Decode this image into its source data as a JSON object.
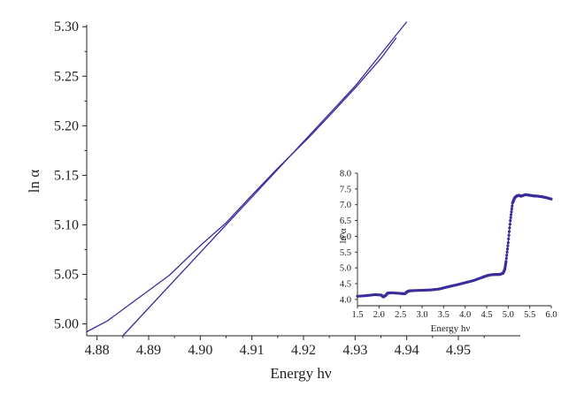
{
  "colors": {
    "series": "#3a2d9c",
    "axis": "#222222"
  },
  "chart_data": [
    {
      "type": "line",
      "title": "",
      "xlabel": "Energy hν",
      "ylabel": "ln α",
      "xlim": [
        4.878,
        4.962
      ],
      "ylim": [
        4.988,
        5.302
      ],
      "xticks": [
        "4.88",
        "4.89",
        "4.90",
        "4.91",
        "4.92",
        "4.93",
        "4.94",
        "4.95"
      ],
      "yticks": [
        "5.00",
        "5.05",
        "5.10",
        "5.15",
        "5.20",
        "5.25",
        "5.30"
      ],
      "grid": false,
      "series": [
        {
          "x": [
            4.878,
            4.882,
            4.888,
            4.894,
            4.9,
            4.905,
            4.91,
            4.915,
            4.921,
            4.925,
            4.93,
            4.935,
            4.938
          ],
          "y": [
            4.992,
            5.003,
            5.026,
            5.049,
            5.079,
            5.102,
            5.13,
            5.157,
            5.188,
            5.21,
            5.238,
            5.268,
            5.289
          ]
        },
        {
          "x": [
            4.885,
            4.9,
            4.91,
            4.92,
            4.93,
            4.94
          ],
          "y": [
            4.988,
            5.072,
            5.128,
            5.184,
            5.24,
            5.305
          ]
        }
      ]
    },
    {
      "type": "scatter",
      "title": "",
      "xlabel": "Energy hν",
      "ylabel": "ln α",
      "xlim": [
        1.5,
        6.0
      ],
      "ylim": [
        3.8,
        8.0
      ],
      "xticks": [
        "1.5",
        "2.0",
        "2.5",
        "3.0",
        "3.5",
        "4.0",
        "4.5",
        "5.0",
        "5.5",
        "6.0"
      ],
      "yticks": [
        "4.0",
        "4.5",
        "5.0",
        "5.5",
        "6.0",
        "6.5",
        "7.0",
        "7.5",
        "8.0"
      ],
      "grid": false,
      "series": [
        {
          "x": [
            1.5,
            1.7,
            1.9,
            2.05,
            2.1,
            2.15,
            2.2,
            2.3,
            2.5,
            2.6,
            2.65,
            2.7,
            2.8,
            3.0,
            3.2,
            3.4,
            3.6,
            3.8,
            4.0,
            4.2,
            4.4,
            4.5,
            4.6,
            4.7,
            4.8,
            4.88,
            4.92,
            4.95,
            5.0,
            5.05,
            5.1,
            5.15,
            5.2,
            5.25,
            5.3,
            5.4,
            5.5,
            5.6,
            5.7,
            5.8,
            5.9,
            6.0
          ],
          "y": [
            4.1,
            4.12,
            4.15,
            4.14,
            4.08,
            4.12,
            4.2,
            4.21,
            4.19,
            4.18,
            4.24,
            4.27,
            4.28,
            4.29,
            4.3,
            4.33,
            4.4,
            4.46,
            4.53,
            4.6,
            4.7,
            4.75,
            4.78,
            4.79,
            4.79,
            4.83,
            4.95,
            5.2,
            5.8,
            6.5,
            7.05,
            7.22,
            7.28,
            7.3,
            7.27,
            7.32,
            7.3,
            7.28,
            7.27,
            7.25,
            7.22,
            7.18
          ]
        }
      ]
    }
  ]
}
